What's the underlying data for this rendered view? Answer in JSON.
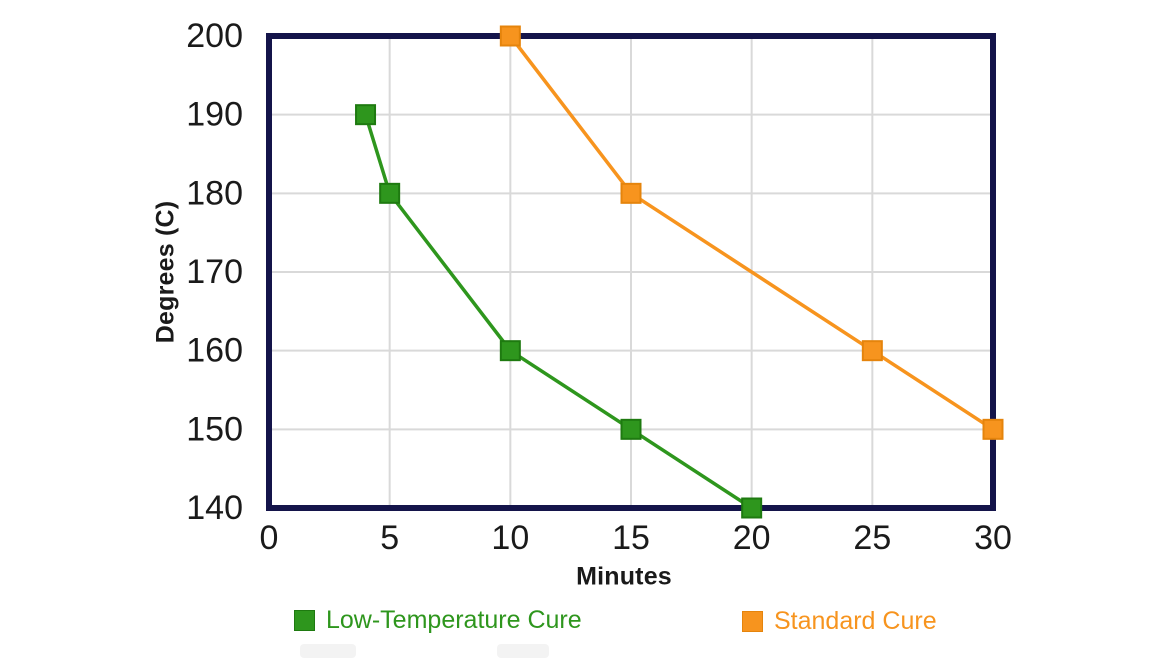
{
  "chart_data": {
    "type": "line",
    "title": "",
    "xlabel": "Minutes",
    "ylabel": "Degrees (C)",
    "x_ticks": [
      "0",
      "5",
      "10",
      "15",
      "20",
      "25",
      "30"
    ],
    "y_ticks": [
      "140",
      "150",
      "160",
      "170",
      "180",
      "190",
      "200"
    ],
    "xlim": [
      0,
      30
    ],
    "ylim": [
      140,
      200
    ],
    "grid": true,
    "legend_position": "bottom",
    "axis_color": "#14144a",
    "gridline_color": "#d9d9d9",
    "tick_label_color": "#1a1a1a",
    "series": [
      {
        "name": "Low-Temperature Cure",
        "color": "#2e961d",
        "marker_border": "#1e7a10",
        "marker": "square",
        "points": [
          [
            4,
            190
          ],
          [
            5,
            180
          ],
          [
            10,
            160
          ],
          [
            15,
            150
          ],
          [
            20,
            140
          ]
        ]
      },
      {
        "name": "Standard Cure",
        "color": "#f7941e",
        "marker_border": "#e5840c",
        "marker": "square",
        "points": [
          [
            10,
            200
          ],
          [
            15,
            180
          ],
          [
            25,
            160
          ],
          [
            30,
            150
          ]
        ]
      }
    ]
  }
}
